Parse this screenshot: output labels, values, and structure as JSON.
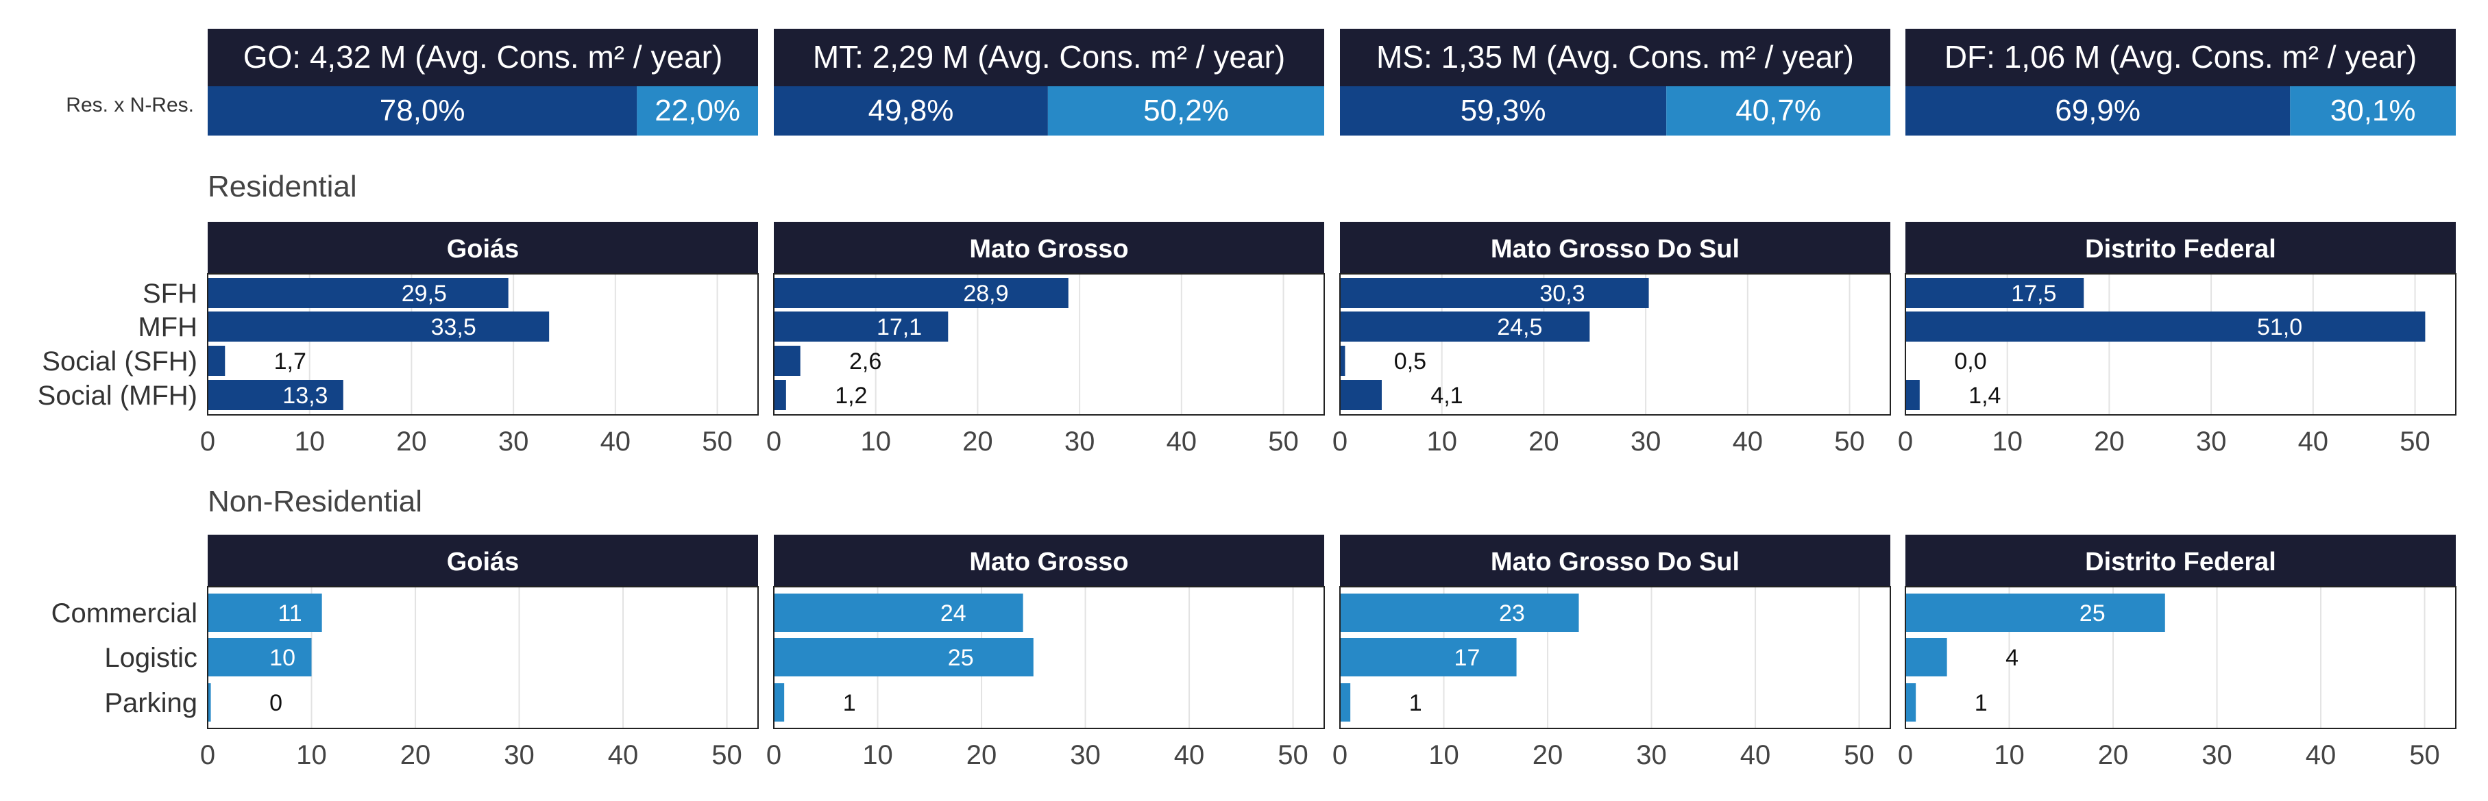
{
  "colors": {
    "header_bg": "#1b1d33",
    "residential": "#124387",
    "nonresidential": "#2789c7",
    "grid": "#e3e3e3",
    "frame": "#222222",
    "text": "#333333"
  },
  "row_label_share": "Res. x N-Res.",
  "section_titles": {
    "residential": "Residential",
    "nonresidential": "Non-Residential"
  },
  "chart_data": [
    {
      "type": "bar",
      "orientation": "stacked-horizontal",
      "name": "share",
      "label": "Res. x N-Res.",
      "panels": [
        {
          "title": "GO: 4,32 M (Avg. Cons. m² / year)",
          "values": [
            78.0,
            22.0
          ],
          "labels": [
            "78,0%",
            "22,0%"
          ]
        },
        {
          "title": "MT: 2,29 M (Avg. Cons. m² / year)",
          "values": [
            49.8,
            50.2
          ],
          "labels": [
            "49,8%",
            "50,2%"
          ]
        },
        {
          "title": "MS: 1,35 M (Avg. Cons. m² / year)",
          "values": [
            59.3,
            40.7
          ],
          "labels": [
            "59,3%",
            "40,7%"
          ]
        },
        {
          "title": "DF: 1,06 M (Avg. Cons. m² / year)",
          "values": [
            69.9,
            30.1
          ],
          "labels": [
            "69,9%",
            "30,1%"
          ]
        }
      ]
    },
    {
      "type": "bar",
      "orientation": "horizontal",
      "name": "residential",
      "title": "Residential",
      "categories": [
        "SFH",
        "MFH",
        "Social (SFH)",
        "Social (MFH)"
      ],
      "xlim": [
        0,
        54
      ],
      "xticks": [
        "0",
        "10",
        "20",
        "30",
        "40",
        "50"
      ],
      "grid": true,
      "panels": [
        {
          "title": "Goiás",
          "values": [
            29.5,
            33.5,
            1.7,
            13.3
          ],
          "labels": [
            "29,5",
            "33,5",
            "1,7",
            "13,3"
          ]
        },
        {
          "title": "Mato Grosso",
          "values": [
            28.9,
            17.1,
            2.6,
            1.2
          ],
          "labels": [
            "28,9",
            "17,1",
            "2,6",
            "1,2"
          ]
        },
        {
          "title": "Mato Grosso Do Sul",
          "values": [
            30.3,
            24.5,
            0.5,
            4.1
          ],
          "labels": [
            "30,3",
            "24,5",
            "0,5",
            "4,1"
          ]
        },
        {
          "title": "Distrito Federal",
          "values": [
            17.5,
            51.0,
            0.0,
            1.4
          ],
          "labels": [
            "17,5",
            "51,0",
            "0,0",
            "1,4"
          ]
        }
      ]
    },
    {
      "type": "bar",
      "orientation": "horizontal",
      "name": "nonresidential",
      "title": "Non-Residential",
      "categories": [
        "Commercial",
        "Logistic",
        "Parking"
      ],
      "xlim": [
        0,
        53
      ],
      "xticks": [
        "0",
        "10",
        "20",
        "30",
        "40",
        "50"
      ],
      "grid": true,
      "panels": [
        {
          "title": "Goiás",
          "values": [
            11,
            10,
            0.3
          ],
          "labels": [
            "11",
            "10",
            "0"
          ]
        },
        {
          "title": "Mato Grosso",
          "values": [
            24,
            25,
            1
          ],
          "labels": [
            "24",
            "25",
            "1"
          ]
        },
        {
          "title": "Mato Grosso Do Sul",
          "values": [
            23,
            17,
            1
          ],
          "labels": [
            "23",
            "17",
            "1"
          ]
        },
        {
          "title": "Distrito Federal",
          "values": [
            25,
            4,
            1
          ],
          "labels": [
            "25",
            "4",
            "1"
          ]
        }
      ]
    }
  ]
}
